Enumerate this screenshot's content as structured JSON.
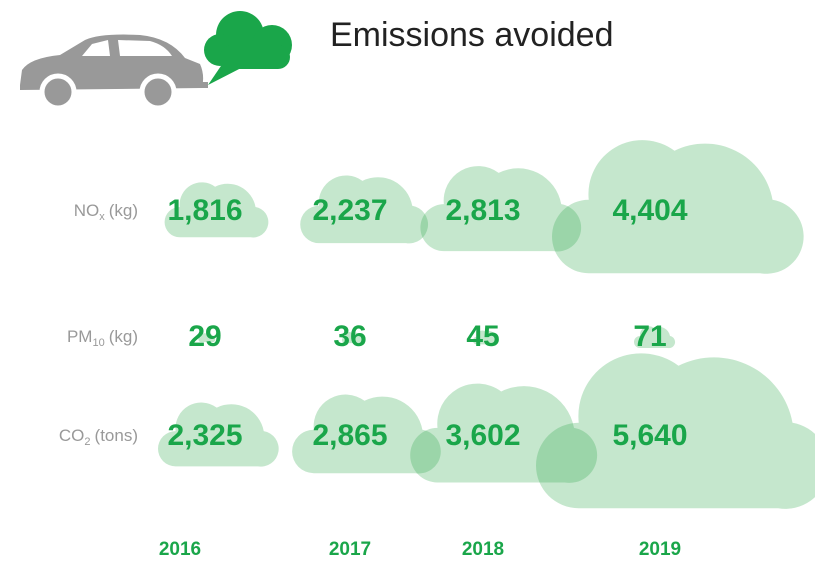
{
  "chart_data": {
    "type": "cloud",
    "title": "Emissions avoided",
    "categories": [
      "2016",
      "2017",
      "2018",
      "2019"
    ],
    "color": "#1aa64a",
    "cloud_color": "#2eaa4a",
    "label_color": "#999999",
    "series": [
      {
        "name": {
          "base": "NO",
          "sub": "x",
          "unit": "(kg)"
        },
        "values": [
          1816,
          2237,
          2813,
          4404
        ],
        "value_labels": [
          "1,816",
          "2,237",
          "2,813",
          "4,404"
        ]
      },
      {
        "name": {
          "base": "PM",
          "sub": "10",
          "unit": "(kg)"
        },
        "values": [
          29,
          36,
          45,
          71
        ]
      },
      {
        "name": {
          "base": "CO",
          "sub": "2",
          "unit": "(tons)"
        },
        "values": [
          2325,
          2865,
          3602,
          5640
        ],
        "value_labels": [
          "2,325",
          "2,865",
          "3,602",
          "5,640"
        ]
      }
    ]
  }
}
